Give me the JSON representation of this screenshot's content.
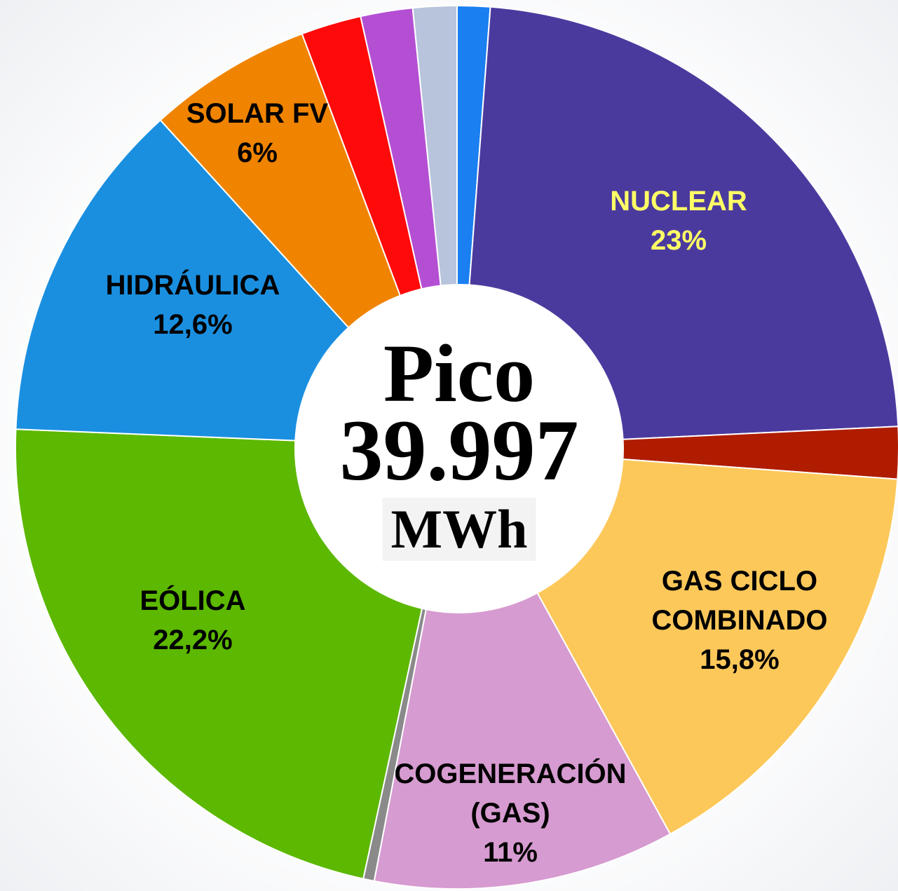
{
  "chart_data": {
    "type": "donut",
    "center_text": {
      "title": "Pico",
      "value": "39.997",
      "unit": "MWh"
    },
    "categories": [
      null,
      "NUCLEAR",
      null,
      "GAS CICLO COMBINADO",
      "COGENERACIÓN (GAS)",
      null,
      "EÓLICA",
      "HIDRÁULICA",
      "SOLAR FV",
      null,
      null,
      null
    ],
    "values": [
      1.2,
      23,
      1.9,
      15.8,
      11,
      0.4,
      22.2,
      12.6,
      6,
      2.2,
      1.9,
      1.6
    ],
    "value_labels": [
      null,
      "23%",
      null,
      "15,8%",
      "11%",
      null,
      "22,2%",
      "12,6%",
      "6%",
      null,
      null,
      null
    ],
    "colors": [
      "#1a7ff0",
      "#4b3a9e",
      "#b01c00",
      "#fdc85a",
      "#d69bd0",
      "#8a8a8a",
      "#5cb800",
      "#1a8fe0",
      "#f08400",
      "#ff0a0a",
      "#b44fd4",
      "#b8c4dc"
    ],
    "label_colors": [
      null,
      "#ffff66",
      null,
      "#000000",
      "#000000",
      null,
      "#000000",
      "#000000",
      "#000000",
      null,
      null,
      null
    ]
  }
}
